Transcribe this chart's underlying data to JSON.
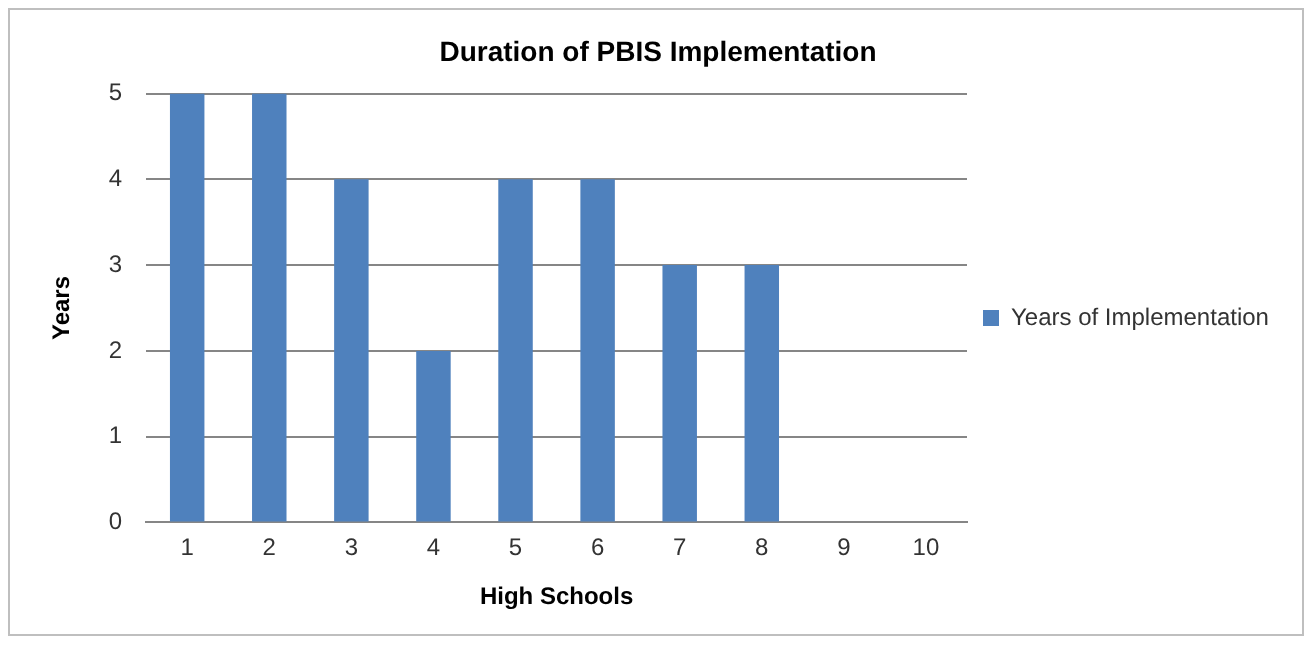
{
  "chart_data": {
    "type": "bar",
    "title": "Duration of PBIS Implementation",
    "xlabel": "High Schools",
    "ylabel": "Years",
    "categories": [
      "1",
      "2",
      "3",
      "4",
      "5",
      "6",
      "7",
      "8",
      "9",
      "10"
    ],
    "series": [
      {
        "name": "Years of Implementation",
        "color": "#4f81bd",
        "values": [
          5,
          5,
          4,
          2,
          4,
          4,
          3,
          3,
          null,
          null
        ]
      }
    ],
    "ylim": [
      0,
      5
    ],
    "yticks": [
      0,
      1,
      2,
      3,
      4,
      5
    ],
    "grid": "y",
    "legend": "right"
  }
}
